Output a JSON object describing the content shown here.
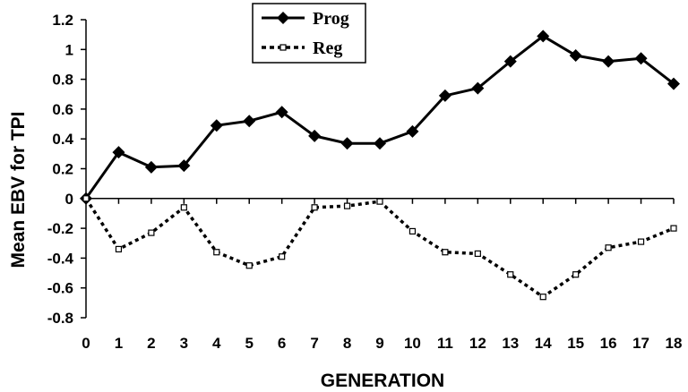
{
  "chart_data": {
    "type": "line",
    "title": "",
    "xlabel": "GENERATION",
    "ylabel": "Mean EBV for TPI",
    "x": [
      0,
      1,
      2,
      3,
      4,
      5,
      6,
      7,
      8,
      9,
      10,
      11,
      12,
      13,
      14,
      15,
      16,
      17,
      18
    ],
    "x_tick_labels": [
      "0",
      "1",
      "2",
      "3",
      "4",
      "5",
      "6",
      "7",
      "8",
      "9",
      "10",
      "11",
      "12",
      "13",
      "14",
      "15",
      "16",
      "17",
      "18"
    ],
    "ylim": [
      -0.8,
      1.2
    ],
    "y_ticks": [
      1.2,
      1,
      0.8,
      0.6,
      0.4,
      0.2,
      0,
      -0.2,
      -0.4,
      -0.6,
      -0.8
    ],
    "y_tick_labels": [
      "1.2",
      "1",
      "0.8",
      "0.6",
      "0.4",
      "0.2",
      "0",
      "-0.2",
      "-0.4",
      "-0.6",
      "-0.8"
    ],
    "grid": false,
    "legend_position": "top-center",
    "series": [
      {
        "name": "Prog",
        "style": "solid",
        "marker": "filled-diamond",
        "color": "#000000",
        "values": [
          0,
          0.31,
          0.21,
          0.22,
          0.49,
          0.52,
          0.58,
          0.42,
          0.37,
          0.37,
          0.45,
          0.69,
          0.74,
          0.92,
          1.09,
          0.96,
          0.92,
          0.94,
          0.77
        ]
      },
      {
        "name": "Reg",
        "style": "dotted",
        "marker": "open-square",
        "color": "#000000",
        "values": [
          0,
          -0.34,
          -0.23,
          -0.06,
          -0.36,
          -0.45,
          -0.39,
          -0.06,
          -0.05,
          -0.02,
          -0.22,
          -0.36,
          -0.37,
          -0.51,
          -0.66,
          -0.51,
          -0.33,
          -0.29,
          -0.2
        ]
      }
    ]
  }
}
